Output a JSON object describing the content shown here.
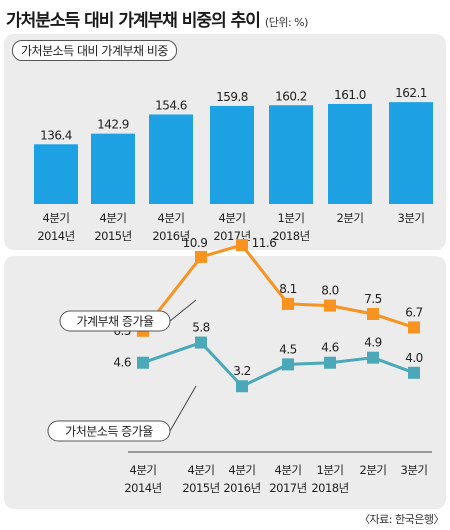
{
  "header": {
    "title": "가처분소득 대비 가계부채 비중의 추이",
    "unit": "(단위: %)"
  },
  "source": "〈자료: 한국은행〉",
  "chart_data": [
    {
      "type": "bar",
      "title": "가처분소득 대비 가계부채 비중",
      "categories": [
        [
          "4분기",
          "2014년"
        ],
        [
          "4분기",
          "2015년"
        ],
        [
          "4분기",
          "2016년"
        ],
        [
          "4분기",
          "2017년"
        ],
        [
          "1분기",
          "2018년"
        ],
        [
          "2분기",
          ""
        ],
        [
          "3분기",
          ""
        ]
      ],
      "values": [
        136.4,
        142.9,
        154.6,
        159.8,
        160.2,
        161.0,
        162.1
      ],
      "value_labels": [
        "136.4",
        "142.9",
        "154.6",
        "159.8",
        "160.2",
        "161.0",
        "162.1"
      ],
      "color": "#1da1e2"
    },
    {
      "type": "line",
      "categories": [
        [
          "4분기",
          "2014년"
        ],
        [
          "4분기",
          "2015년"
        ],
        [
          "4분기",
          "2016년"
        ],
        [
          "4분기",
          "2017년"
        ],
        [
          "1분기",
          "2018년"
        ],
        [
          "2분기",
          ""
        ],
        [
          "3분기",
          ""
        ]
      ],
      "series": [
        {
          "name": "가계부채 증가율",
          "values": [
            6.5,
            10.9,
            11.6,
            8.1,
            8.0,
            7.5,
            6.7
          ],
          "value_labels": [
            "6.5",
            "10.9",
            "11.6",
            "8.1",
            "8.0",
            "7.5",
            "6.7"
          ],
          "color": "#f7931e"
        },
        {
          "name": "가처분소득 증가율",
          "values": [
            4.6,
            5.8,
            3.2,
            4.5,
            4.6,
            4.9,
            4.0
          ],
          "value_labels": [
            "4.6",
            "5.8",
            "3.2",
            "4.5",
            "4.6",
            "4.9",
            "4.0"
          ],
          "color": "#4aa8b8"
        }
      ]
    }
  ]
}
